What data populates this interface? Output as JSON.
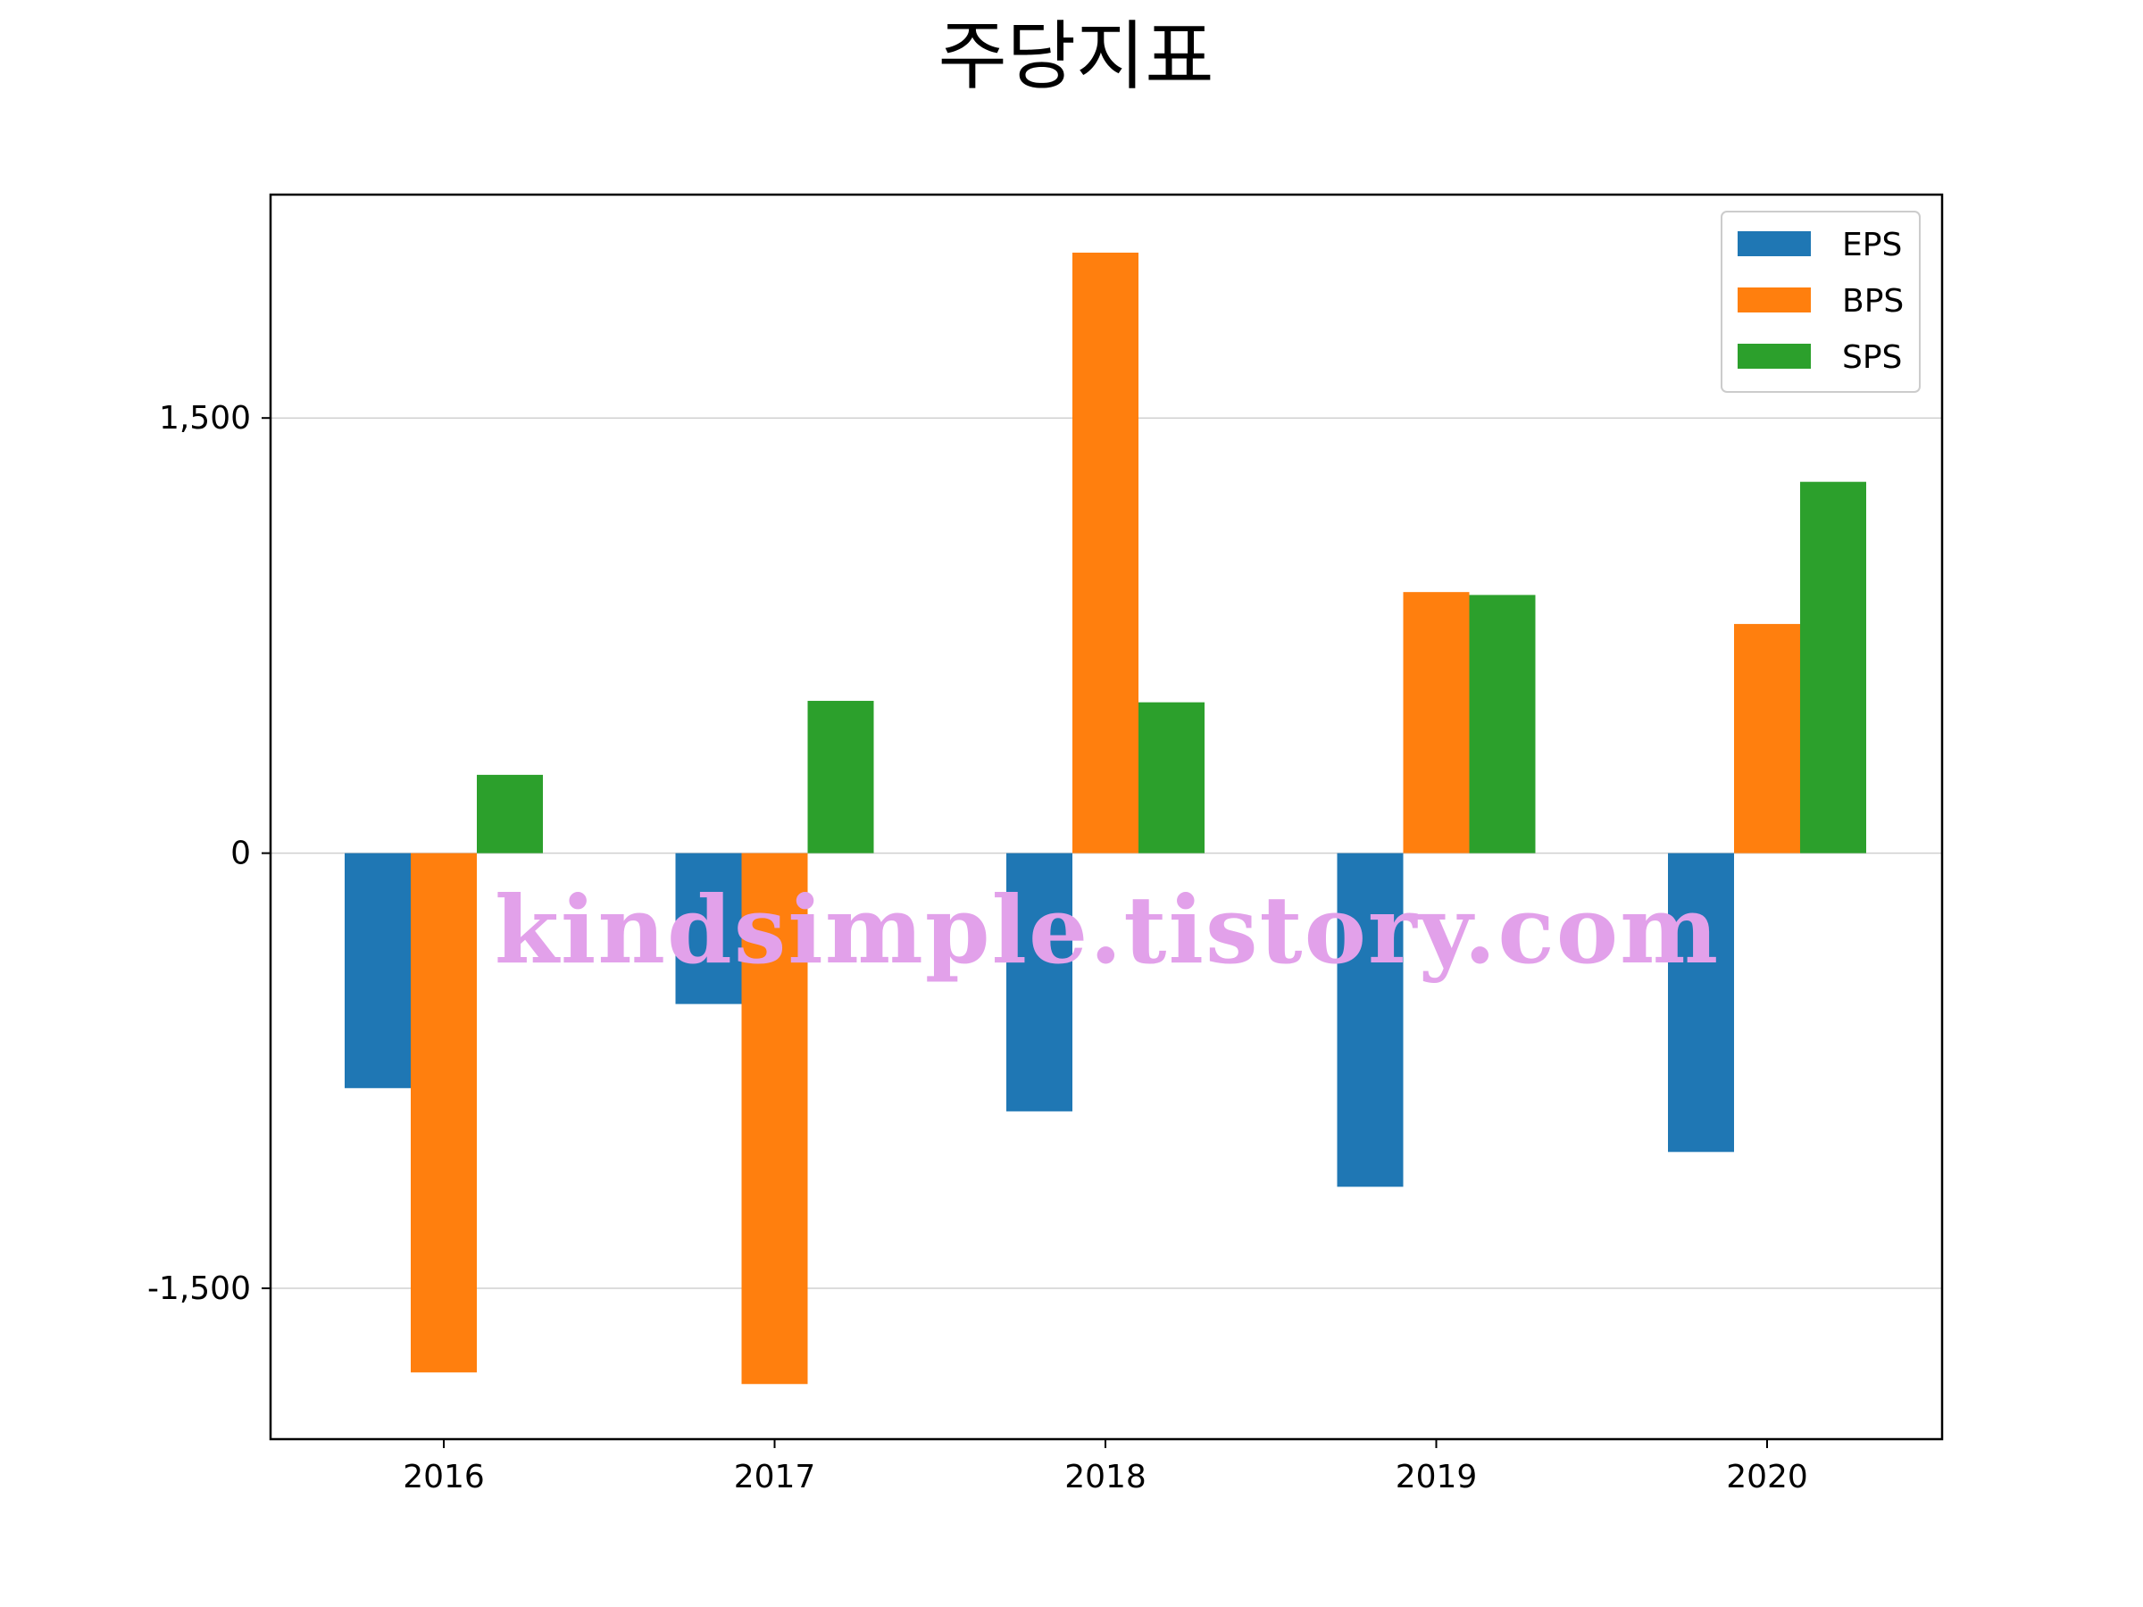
{
  "chart_data": {
    "type": "bar",
    "title": "주당지표",
    "xlabel": "",
    "ylabel": "",
    "categories": [
      "2016",
      "2017",
      "2018",
      "2019",
      "2020"
    ],
    "series": [
      {
        "name": "EPS",
        "color": "#1f77b4",
        "values": [
          -810,
          -520,
          -890,
          -1150,
          -1030
        ]
      },
      {
        "name": "BPS",
        "color": "#ff7f0e",
        "values": [
          -1790,
          -1830,
          2070,
          900,
          790
        ]
      },
      {
        "name": "SPS",
        "color": "#2ca02c",
        "values": [
          270,
          525,
          520,
          890,
          1280
        ]
      }
    ],
    "yticks": [
      -1500,
      0,
      1500
    ],
    "ytick_labels": [
      "-1,500",
      "0",
      "1,500"
    ],
    "ylim": [
      -2020,
      2270
    ],
    "grid": "horizontal",
    "legend_position": "top-right"
  },
  "watermark": "kindsimple.tistory.com"
}
